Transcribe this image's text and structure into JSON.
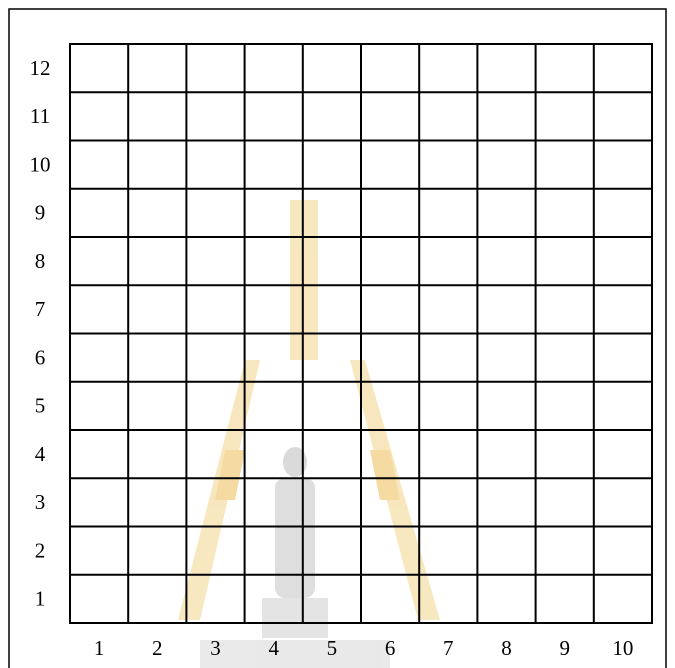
{
  "grid": {
    "row_labels": [
      "12",
      "11",
      "10",
      "9",
      "8",
      "7",
      "6",
      "5",
      "4",
      "3",
      "2",
      "1"
    ],
    "column_labels": [
      "1",
      "2",
      "3",
      "4",
      "5",
      "6",
      "7",
      "8",
      "9",
      "10"
    ]
  }
}
